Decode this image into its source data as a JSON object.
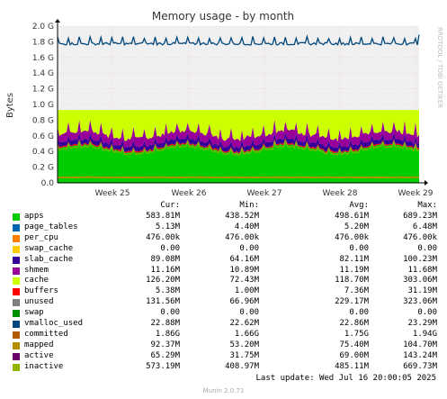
{
  "chart_data": {
    "type": "area",
    "title": "Memory usage - by month",
    "ylabel": "Bytes",
    "y_ticks": [
      "0.0",
      "0.2 G",
      "0.4 G",
      "0.6 G",
      "0.8 G",
      "1.0 G",
      "1.2 G",
      "1.4 G",
      "1.6 G",
      "1.8 G",
      "2.0 G"
    ],
    "ylim": [
      0,
      2.0
    ],
    "x_ticks": [
      "Week 25",
      "Week 26",
      "Week 27",
      "Week 28",
      "Week 29"
    ],
    "watermark": "RRDTOOL / TOBI OETIKER",
    "stack_approx_gb": {
      "apps": 0.58,
      "page_tables": 0.005,
      "per_cpu": 0.0005,
      "slab_cache": 0.089,
      "cache": 0.126,
      "buffers": 0.005,
      "unused": 0.13,
      "total_visible_top": 0.93
    },
    "committed_line_gb": 1.8
  },
  "legend": {
    "headers": {
      "cur": "Cur:",
      "min": "Min:",
      "avg": "Avg:",
      "max": "Max:"
    },
    "rows": [
      {
        "name": "apps",
        "color": "#00cc00",
        "cur": "583.81M",
        "min": "438.52M",
        "avg": "498.61M",
        "max": "689.23M"
      },
      {
        "name": "page_tables",
        "color": "#0066b3",
        "cur": "5.13M",
        "min": "4.40M",
        "avg": "5.20M",
        "max": "6.48M"
      },
      {
        "name": "per_cpu",
        "color": "#ff8000",
        "cur": "476.00k",
        "min": "476.00k",
        "avg": "476.00k",
        "max": "476.00k"
      },
      {
        "name": "swap_cache",
        "color": "#ffcc00",
        "cur": "0.00",
        "min": "0.00",
        "avg": "0.00",
        "max": "0.00"
      },
      {
        "name": "slab_cache",
        "color": "#330099",
        "cur": "89.08M",
        "min": "64.16M",
        "avg": "82.11M",
        "max": "100.23M"
      },
      {
        "name": "shmem",
        "color": "#990099",
        "cur": "11.16M",
        "min": "10.89M",
        "avg": "11.19M",
        "max": "11.68M"
      },
      {
        "name": "cache",
        "color": "#ccff00",
        "cur": "126.20M",
        "min": "72.43M",
        "avg": "118.70M",
        "max": "303.06M"
      },
      {
        "name": "buffers",
        "color": "#ff0000",
        "cur": "5.38M",
        "min": "1.00M",
        "avg": "7.36M",
        "max": "31.19M"
      },
      {
        "name": "unused",
        "color": "#808080",
        "cur": "131.56M",
        "min": "66.96M",
        "avg": "229.17M",
        "max": "323.06M"
      },
      {
        "name": "swap",
        "color": "#008f00",
        "cur": "0.00",
        "min": "0.00",
        "avg": "0.00",
        "max": "0.00"
      },
      {
        "name": "vmalloc_used",
        "color": "#00487d",
        "cur": "22.88M",
        "min": "22.62M",
        "avg": "22.86M",
        "max": "23.29M"
      },
      {
        "name": "committed",
        "color": "#b35a00",
        "cur": "1.86G",
        "min": "1.66G",
        "avg": "1.75G",
        "max": "1.94G"
      },
      {
        "name": "mapped",
        "color": "#b38f00",
        "cur": "92.37M",
        "min": "53.20M",
        "avg": "75.40M",
        "max": "104.70M"
      },
      {
        "name": "active",
        "color": "#6b006b",
        "cur": "65.29M",
        "min": "31.75M",
        "avg": "69.00M",
        "max": "143.24M"
      },
      {
        "name": "inactive",
        "color": "#8fb300",
        "cur": "573.19M",
        "min": "408.97M",
        "avg": "485.11M",
        "max": "669.73M"
      }
    ]
  },
  "legend_swatch_colors": [
    "#00cc00",
    "#0066b3",
    "#ff8000",
    "#ffcc00",
    "#330099",
    "#990099",
    "#ccff00",
    "#ff0000",
    "#808080",
    "#008f00",
    "#00487d",
    "#b35a00",
    "#b38f00",
    "#6b006b",
    "#8fb300"
  ],
  "footer": {
    "last_update": "Last update: Wed Jul 16 20:00:05 2025",
    "version": "Munin 2.0.71"
  }
}
